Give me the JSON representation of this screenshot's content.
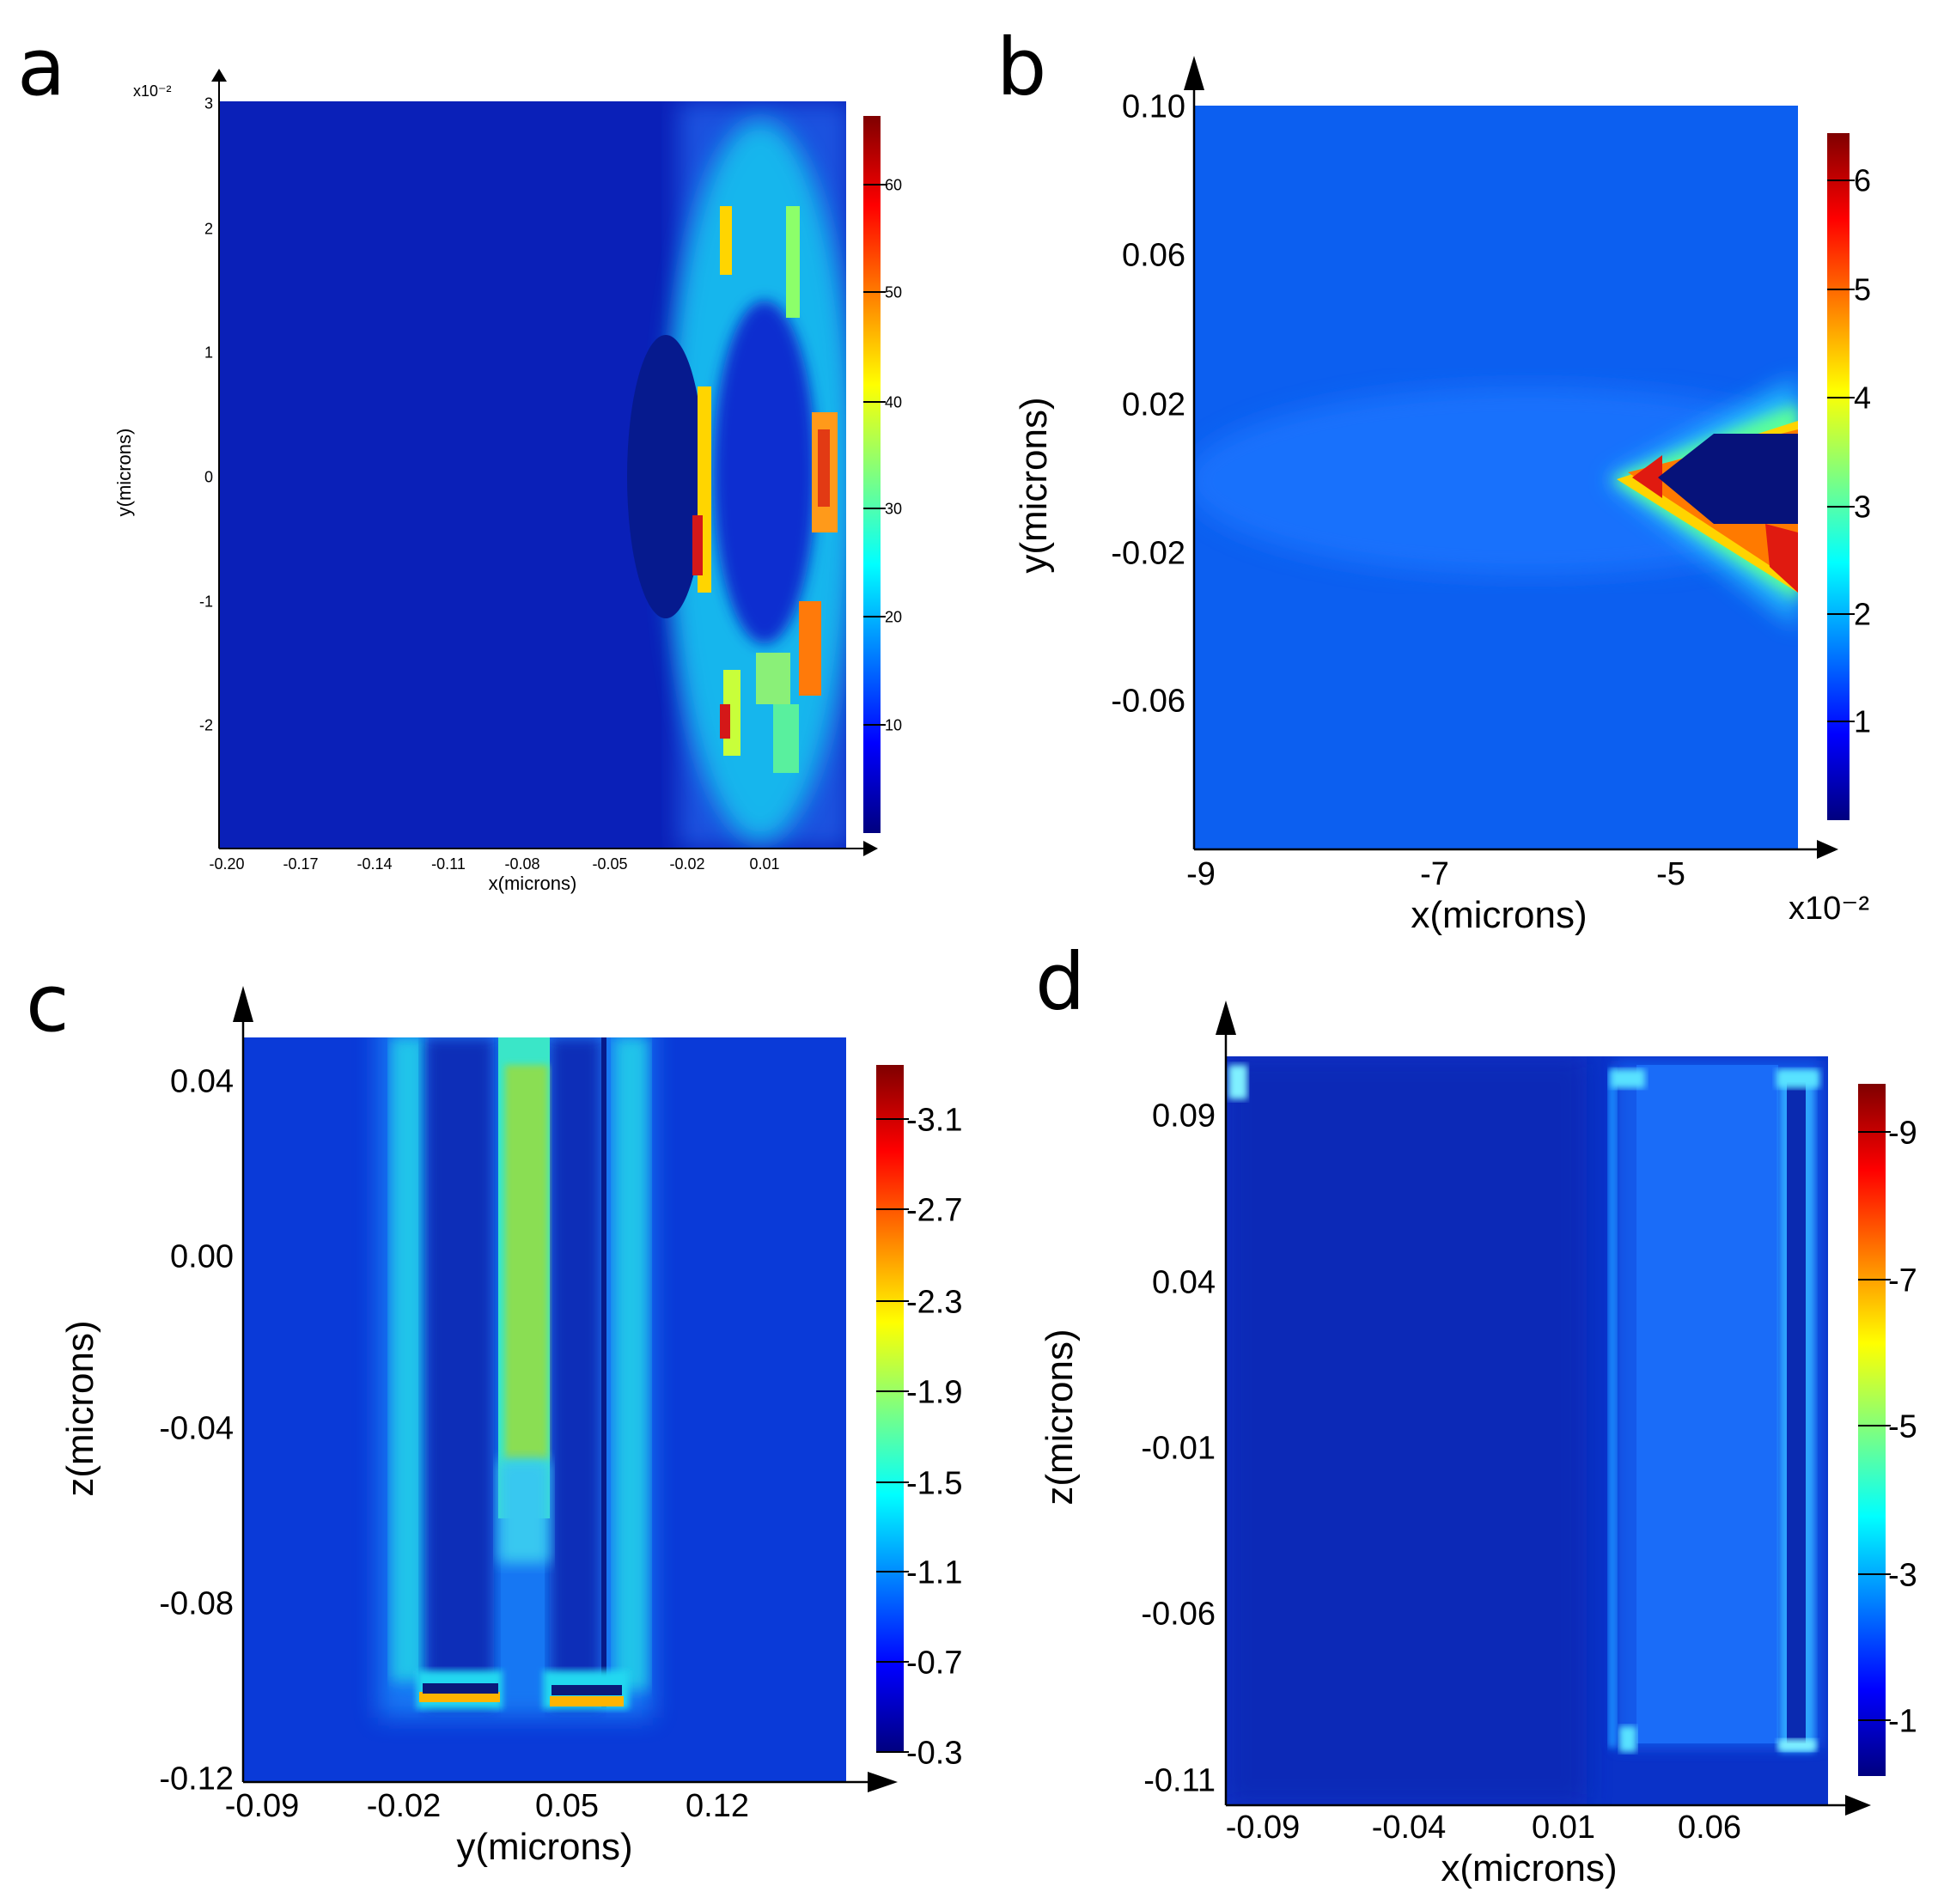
{
  "colormap": [
    "#00007f",
    "#0000ff",
    "#007fff",
    "#00ffff",
    "#7fff7f",
    "#ffff00",
    "#ff7f00",
    "#ff0000",
    "#7f0000"
  ],
  "chart_data": [
    {
      "panel": "a",
      "type": "heatmap",
      "xlabel": "x(microns)",
      "ylabel": "y(microns)",
      "x_ticks": [
        "-0.20",
        "-0.17",
        "-0.14",
        "-0.11",
        "-0.08",
        "-0.05",
        "-0.02",
        "0.01"
      ],
      "y_ticks": [
        "3",
        "2",
        "1",
        "0",
        "-1",
        "-2"
      ],
      "y_multiplier": "x10⁻²",
      "xlim": [
        -0.2,
        0.03
      ],
      "ylim": [
        -3,
        3
      ],
      "colorbar_ticks": [
        "60",
        "50",
        "40",
        "30",
        "20",
        "10"
      ],
      "colorbar_range": [
        0,
        66
      ],
      "background_value": 5
    },
    {
      "panel": "b",
      "type": "heatmap",
      "xlabel": "x(microns)",
      "ylabel": "y(microns)",
      "x_ticks": [
        "-9",
        "-7",
        "-5"
      ],
      "x_multiplier": "x10⁻²",
      "y_ticks": [
        "0.10",
        "0.06",
        "0.02",
        "-0.02",
        "-0.06"
      ],
      "xlim": [
        -9,
        -3.8
      ],
      "ylim": [
        -0.1,
        0.1
      ],
      "colorbar_ticks": [
        "6",
        "5",
        "4",
        "3",
        "2",
        "1"
      ],
      "colorbar_range": [
        0,
        6.5
      ],
      "background_value": 1.2
    },
    {
      "panel": "c",
      "type": "heatmap",
      "xlabel": "y(microns)",
      "ylabel": "z(microns)",
      "x_ticks": [
        "-0.09",
        "-0.02",
        "0.05",
        "0.12"
      ],
      "y_ticks": [
        "0.04",
        "0.00",
        "-0.04",
        "-0.08",
        "-0.12"
      ],
      "xlim": [
        -0.1,
        0.19
      ],
      "ylim": [
        -0.12,
        0.05
      ],
      "colorbar_ticks": [
        "3.1",
        "2.7",
        "2.3",
        "1.9",
        "1.5",
        "1.1",
        "0.7",
        "0.3"
      ],
      "colorbar_range": [
        0.3,
        3.4
      ],
      "background_value": 0.7
    },
    {
      "panel": "d",
      "type": "heatmap",
      "xlabel": "x(microns)",
      "ylabel": "z(microns)",
      "x_ticks": [
        "-0.09",
        "-0.04",
        "0.01",
        "0.06"
      ],
      "y_ticks": [
        "0.09",
        "0.04",
        "-0.01",
        "-0.06",
        "-0.11"
      ],
      "xlim": [
        -0.095,
        0.095
      ],
      "ylim": [
        -0.12,
        0.105
      ],
      "colorbar_ticks": [
        "9",
        "7",
        "5",
        "3",
        "1"
      ],
      "colorbar_range": [
        0,
        9.8
      ],
      "background_value": 0.6
    }
  ]
}
